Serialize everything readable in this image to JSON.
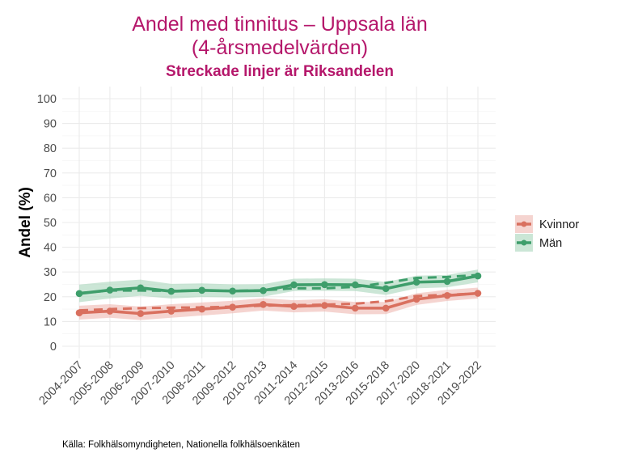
{
  "chart_data": {
    "type": "line",
    "title_line1": "Andel med tinnitus – Uppsala län",
    "title_line2": "(4-årsmedelvärden)",
    "subtitle": "Streckade linjer är Riksandelen",
    "xlabel": "",
    "ylabel": "Andel (%)",
    "ylim": [
      0,
      100
    ],
    "yticks": [
      0,
      10,
      20,
      30,
      40,
      50,
      60,
      70,
      80,
      90,
      100
    ],
    "grid": true,
    "legend_position": "right",
    "categories": [
      "2004-2007",
      "2005-2008",
      "2006-2009",
      "2007-2010",
      "2008-2011",
      "2009-2012",
      "2010-2013",
      "2011-2014",
      "2012-2015",
      "2013-2016",
      "2015-2018",
      "2017-2020",
      "2018-2021",
      "2019-2022"
    ],
    "series": [
      {
        "name": "Kvinnor",
        "color": "#d9705f",
        "band_color": "#efb8b1",
        "values": [
          13.5,
          14.2,
          13.2,
          14.2,
          15.0,
          15.8,
          16.9,
          16.1,
          16.5,
          15.4,
          15.4,
          19.0,
          20.5,
          21.4
        ],
        "lower": [
          10.8,
          11.5,
          10.6,
          11.5,
          12.4,
          13.3,
          14.4,
          13.7,
          14.0,
          12.9,
          13.0,
          16.7,
          18.3,
          19.3
        ],
        "upper": [
          16.4,
          17.0,
          16.0,
          17.0,
          17.7,
          18.4,
          19.4,
          18.6,
          19.0,
          17.9,
          17.9,
          21.4,
          22.8,
          23.7
        ],
        "national": [
          14.5,
          15.0,
          15.4,
          15.6,
          15.7,
          16.0,
          16.4,
          16.6,
          16.8,
          17.2,
          18.2,
          20.3,
          20.8,
          21.3
        ]
      },
      {
        "name": "Män",
        "color": "#3e9e6b",
        "band_color": "#a9d6bb",
        "values": [
          21.3,
          22.7,
          23.6,
          22.2,
          22.6,
          22.3,
          22.5,
          24.8,
          24.9,
          24.8,
          23.3,
          25.9,
          26.2,
          28.4
        ],
        "lower": [
          17.8,
          19.3,
          20.4,
          19.3,
          19.9,
          19.7,
          20.0,
          22.3,
          22.4,
          22.3,
          20.7,
          23.4,
          23.8,
          25.8
        ],
        "upper": [
          24.9,
          26.1,
          26.9,
          25.2,
          25.4,
          25.0,
          25.1,
          27.3,
          27.4,
          27.3,
          26.0,
          28.5,
          28.8,
          31.0
        ],
        "national": [
          21.5,
          22.5,
          22.5,
          22.4,
          22.5,
          22.4,
          22.6,
          23.4,
          23.4,
          24.0,
          25.6,
          27.6,
          28.0,
          28.8
        ]
      }
    ],
    "caption": "Källa: Folkhälsomyndigheten, Nationella folkhälsoenkäten"
  }
}
